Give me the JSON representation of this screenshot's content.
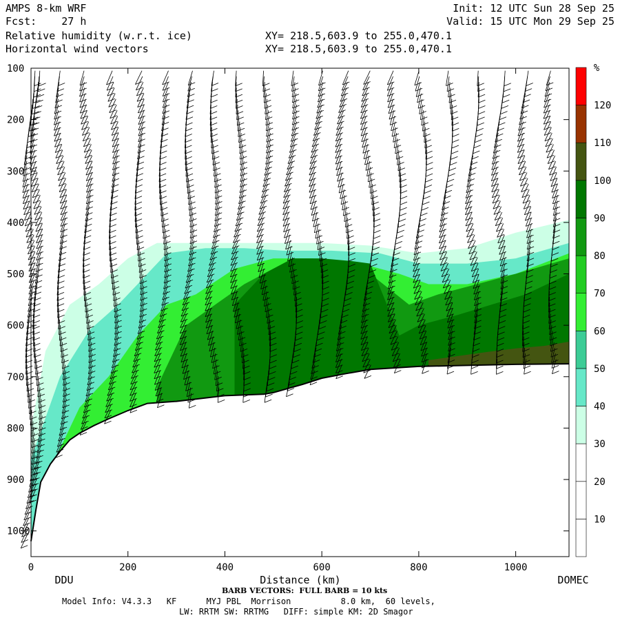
{
  "header": {
    "line1_left": "AMPS 8-km WRF",
    "line2_left": "Fcst:    27 h",
    "line3_left": "Relative humidity (w.r.t. ice)",
    "line4_left": "Horizontal wind vectors",
    "line1_right": "Init: 12 UTC Sun 28 Sep 25",
    "line2_right": "Valid: 15 UTC Mon 29 Sep 25",
    "line3_mid": "XY= 218.5,603.9 to 255.0,470.1",
    "line4_mid": "XY= 218.5,603.9 to 255.0,470.1"
  },
  "chart_data": {
    "type": "heatmap",
    "title": "Relative humidity (w.r.t. ice)",
    "xlabel": "Distance (km)",
    "ylabel": "",
    "xlim": [
      0,
      1110
    ],
    "ylim": [
      1050,
      100
    ],
    "x_ticks": [
      0,
      200,
      400,
      600,
      800,
      1000
    ],
    "y_ticks": [
      100,
      200,
      300,
      400,
      500,
      600,
      700,
      800,
      900,
      1000
    ],
    "x_end_labels": {
      "left": "DDU",
      "right": "DOMEC"
    },
    "colorbar": {
      "unit": "%",
      "levels": [
        10,
        20,
        30,
        40,
        50,
        60,
        70,
        80,
        90,
        100,
        110,
        120
      ],
      "colors": [
        "#ffffff",
        "#ffffff",
        "#ffffff",
        "#ccffe6",
        "#66e8c8",
        "#3ccc96",
        "#33ee33",
        "#22cc22",
        "#119911",
        "#007700",
        "#445511",
        "#993300",
        "#ff0000"
      ]
    },
    "terrain_pressure": {
      "x": [
        0,
        10,
        20,
        40,
        60,
        80,
        100,
        130,
        160,
        200,
        240,
        300,
        400,
        480,
        500,
        560,
        600,
        650,
        700,
        800,
        900,
        1000,
        1110
      ],
      "p": [
        1020,
        960,
        905,
        870,
        845,
        823,
        810,
        795,
        782,
        766,
        752,
        748,
        737,
        734,
        731,
        715,
        703,
        694,
        686,
        680,
        678,
        676,
        675
      ]
    },
    "rh_fields": [
      {
        "rh": 35,
        "x": [
          0,
          30,
          80,
          140,
          200,
          260,
          320,
          400,
          480,
          600,
          700,
          800,
          900,
          1000,
          1110
        ],
        "ptop": [
          800,
          650,
          560,
          520,
          470,
          440,
          440,
          440,
          440,
          440,
          445,
          460,
          450,
          420,
          395
        ]
      },
      {
        "rh": 45,
        "x": [
          0,
          60,
          120,
          180,
          220,
          280,
          360,
          440,
          520,
          620,
          720,
          800,
          900,
          1000,
          1110
        ],
        "ptop": [
          860,
          700,
          610,
          560,
          520,
          460,
          450,
          450,
          455,
          455,
          460,
          480,
          480,
          470,
          440
        ]
      },
      {
        "rh": 65,
        "x": [
          40,
          100,
          160,
          220,
          280,
          340,
          420,
          500,
          580,
          680,
          760,
          820,
          900,
          1000,
          1110
        ],
        "ptop": [
          880,
          760,
          700,
          620,
          560,
          540,
          490,
          470,
          470,
          480,
          500,
          520,
          520,
          500,
          460
        ]
      },
      {
        "rh": 85,
        "x": [
          260,
          320,
          380,
          440,
          500,
          560,
          620,
          700,
          780,
          840,
          920,
          1000,
          1110
        ],
        "ptop": [
          720,
          600,
          560,
          520,
          490,
          480,
          490,
          500,
          560,
          540,
          520,
          500,
          470
        ]
      },
      {
        "rh": 95,
        "x": [
          420,
          480,
          540,
          600,
          660,
          700,
          760,
          800,
          880,
          950,
          1020,
          1110
        ],
        "ptop": [
          560,
          500,
          470,
          470,
          475,
          480,
          620,
          600,
          580,
          560,
          540,
          500
        ]
      },
      {
        "rh": 105,
        "x": [
          820,
          880,
          940,
          1000,
          1060,
          1110
        ],
        "ptop": [
          668,
          660,
          652,
          645,
          640,
          632
        ]
      }
    ],
    "wind_barbs": {
      "columns_x_km": [
        0,
        15,
        65,
        118,
        172,
        225,
        275,
        328,
        380,
        432,
        486,
        540,
        594,
        648,
        700,
        755,
        808,
        862,
        916,
        970,
        1024,
        1078
      ],
      "full_barb_kts": 10
    },
    "barb_caption": "BARB VECTORS:  FULL BARB = 10 kts"
  },
  "footer": {
    "line1": "Model Info: V4.3.3   KF      MYJ PBL  Morrison          8.0 km,  60 levels,",
    "line2": "LW: RRTM SW: RRTMG   DIFF: simple KM: 2D Smagor"
  }
}
